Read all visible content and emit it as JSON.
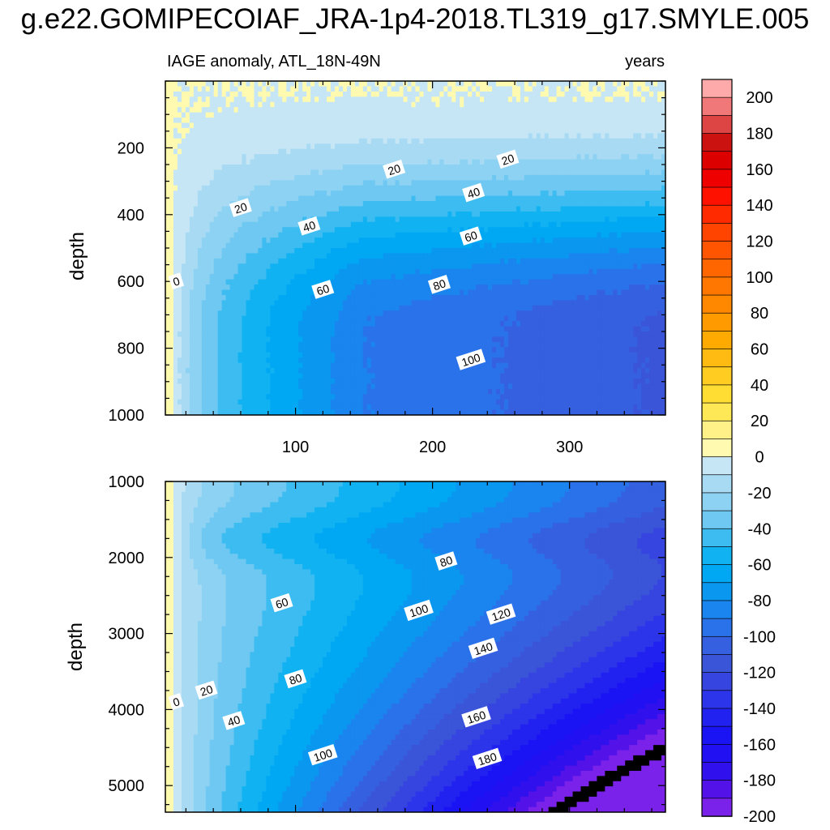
{
  "title": "g.e22.GOMIPECOIAF_JRA-1p4-2018.TL319_g17.SMYLE.005",
  "chart_data": [
    {
      "type": "heatmap",
      "panel": "upper",
      "left_label": "IAGE anomaly, ATL_18N-49N",
      "right_label": "years",
      "xlabel": "",
      "ylabel": "depth",
      "xlim": [
        5,
        370
      ],
      "ylim": [
        1000,
        0
      ],
      "xticks": [
        100,
        200,
        300
      ],
      "yticks": [
        200,
        400,
        600,
        800,
        1000
      ],
      "contour_labels": [
        {
          "text": "0",
          "x": 13,
          "y": 600
        },
        {
          "text": "20",
          "x": 60,
          "y": 380
        },
        {
          "text": "20",
          "x": 172,
          "y": 265
        },
        {
          "text": "20",
          "x": 255,
          "y": 235
        },
        {
          "text": "40",
          "x": 110,
          "y": 435
        },
        {
          "text": "40",
          "x": 230,
          "y": 335
        },
        {
          "text": "60",
          "x": 120,
          "y": 625
        },
        {
          "text": "60",
          "x": 228,
          "y": 465
        },
        {
          "text": "80",
          "x": 205,
          "y": 610
        },
        {
          "text": "100",
          "x": 228,
          "y": 835
        }
      ]
    },
    {
      "type": "heatmap",
      "panel": "lower",
      "xlabel": "",
      "ylabel": "depth",
      "xlim": [
        5,
        370
      ],
      "ylim": [
        5350,
        1000
      ],
      "xticks": [
        100,
        200,
        300
      ],
      "yticks": [
        1000,
        2000,
        3000,
        4000,
        5000
      ],
      "contour_labels": [
        {
          "text": "0",
          "x": 13,
          "y": 3900
        },
        {
          "text": "20",
          "x": 35,
          "y": 3750
        },
        {
          "text": "40",
          "x": 55,
          "y": 4150
        },
        {
          "text": "60",
          "x": 90,
          "y": 2600
        },
        {
          "text": "80",
          "x": 210,
          "y": 2050
        },
        {
          "text": "80",
          "x": 100,
          "y": 3600
        },
        {
          "text": "100",
          "x": 190,
          "y": 2700
        },
        {
          "text": "100",
          "x": 120,
          "y": 4600
        },
        {
          "text": "120",
          "x": 250,
          "y": 2750
        },
        {
          "text": "140",
          "x": 237,
          "y": 3200
        },
        {
          "text": "160",
          "x": 232,
          "y": 4100
        },
        {
          "text": "180",
          "x": 240,
          "y": 4650
        }
      ]
    }
  ],
  "colorbar": {
    "levels": [
      -210,
      -200,
      -190,
      -180,
      -170,
      -160,
      -150,
      -140,
      -130,
      -120,
      -110,
      -100,
      -90,
      -80,
      -70,
      -60,
      -50,
      -40,
      -30,
      -20,
      -10,
      0,
      10,
      20,
      30,
      40,
      50,
      60,
      70,
      80,
      90,
      100,
      110,
      120,
      130,
      140,
      150,
      160,
      170,
      180,
      190,
      200,
      210
    ],
    "labels": [
      "200",
      "180",
      "160",
      "140",
      "120",
      "100",
      "80",
      "60",
      "40",
      "20",
      "0",
      "-20",
      "-40",
      "-60",
      "-80",
      "-100",
      "-120",
      "-140",
      "-160",
      "-180",
      "-200"
    ],
    "colors": [
      "#ffaaaa",
      "#f07878",
      "#dd4444",
      "#cc1111",
      "#dd0000",
      "#ee0000",
      "#ff1100",
      "#ff2a00",
      "#ff4400",
      "#ff5500",
      "#ff6600",
      "#ff7700",
      "#ff8800",
      "#ff9a00",
      "#ffaa00",
      "#ffbb11",
      "#ffcc22",
      "#ffdd33",
      "#ffe855",
      "#fff188",
      "#fffab0",
      "#c6e6f6",
      "#a8dbf3",
      "#8dd2f3",
      "#6ec8f2",
      "#3cbcf0",
      "#10b2f2",
      "#00a8f4",
      "#0a97f0",
      "#1a85ee",
      "#2a72ea",
      "#3561e0",
      "#3a55d8",
      "#3645e0",
      "#2d35ea",
      "#2222f0",
      "#1a14f5",
      "#2010f2",
      "#3010ec",
      "#5212e8",
      "#7a22ea"
    ]
  }
}
